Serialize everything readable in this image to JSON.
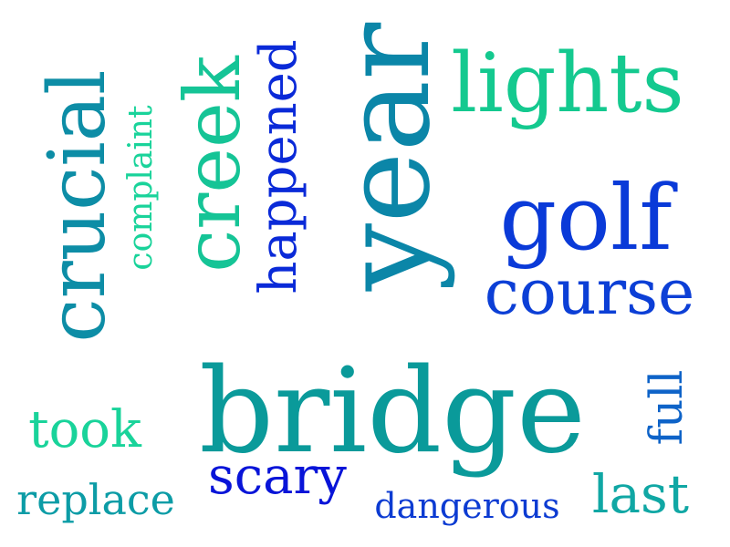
{
  "cloud": {
    "words": {
      "bridge": {
        "text": "bridge",
        "color": "#0a9a9a"
      },
      "year": {
        "text": "year",
        "color": "#0b86a8"
      },
      "golf": {
        "text": "golf",
        "color": "#0a3ad8"
      },
      "lights": {
        "text": "lights",
        "color": "#14c98f"
      },
      "crucial": {
        "text": "crucial",
        "color": "#0d8da6"
      },
      "creek": {
        "text": "creek",
        "color": "#15c496"
      },
      "course": {
        "text": "course",
        "color": "#0c3fd6"
      },
      "happened": {
        "text": "happened",
        "color": "#0a2ad8"
      },
      "scary": {
        "text": "scary",
        "color": "#0814d8"
      },
      "took": {
        "text": "took",
        "color": "#19d39a"
      },
      "last": {
        "text": "last",
        "color": "#10a7a4"
      },
      "replace": {
        "text": "replace",
        "color": "#0c9ca6"
      },
      "full": {
        "text": "full",
        "color": "#0e63c8"
      },
      "dangerous": {
        "text": "dangerous",
        "color": "#0c3bd2"
      },
      "complaint": {
        "text": "complaint",
        "color": "#19d39a"
      }
    }
  }
}
